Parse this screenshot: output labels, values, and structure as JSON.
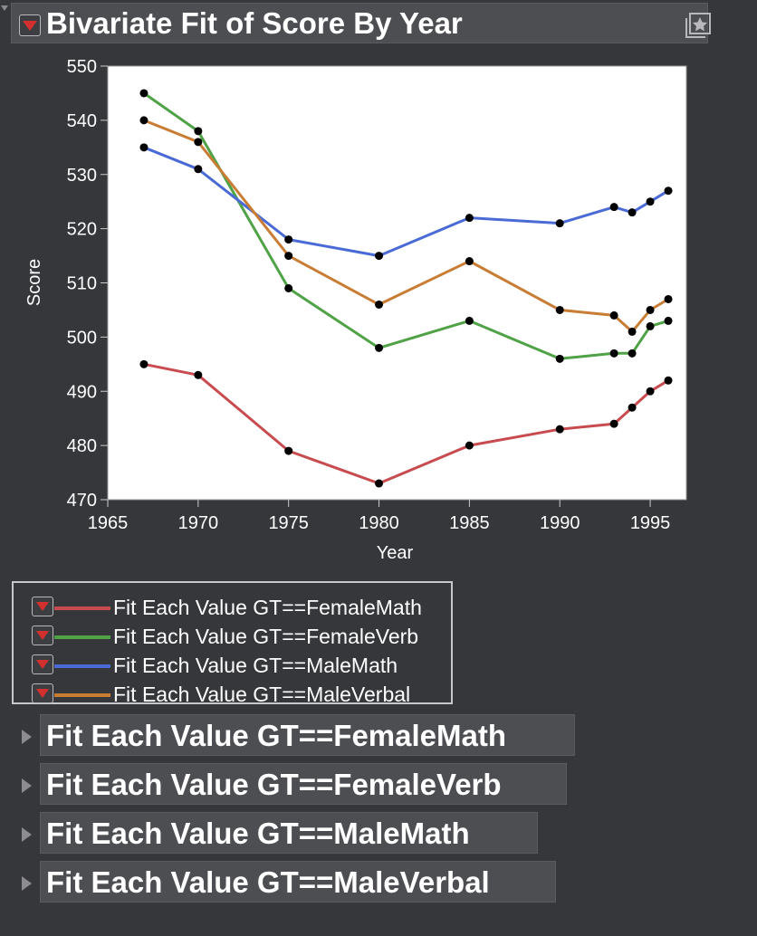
{
  "report": {
    "title": "Bivariate Fit of Score By Year"
  },
  "legend": {
    "items": [
      {
        "label": "Fit Each Value GT==FemaleMath",
        "color": "#c84b4f"
      },
      {
        "label": "Fit Each Value GT==FemaleVerb",
        "color": "#4fa346"
      },
      {
        "label": "Fit Each Value GT==MaleMath",
        "color": "#4a6bd6"
      },
      {
        "label": "Fit Each Value GT==MaleVerbal",
        "color": "#c97d34"
      }
    ]
  },
  "sections": [
    {
      "label": "Fit Each Value GT==FemaleMath"
    },
    {
      "label": "Fit Each Value GT==FemaleVerb"
    },
    {
      "label": "Fit Each Value GT==MaleMath"
    },
    {
      "label": "Fit Each Value GT==MaleVerbal"
    }
  ],
  "chart_data": {
    "type": "line",
    "title": "Bivariate Fit of Score By Year",
    "xlabel": "Year",
    "ylabel": "Score",
    "xlim": [
      1965,
      1997
    ],
    "ylim": [
      470,
      550
    ],
    "xticks": [
      1965,
      1970,
      1975,
      1980,
      1985,
      1990,
      1995
    ],
    "yticks": [
      470,
      480,
      490,
      500,
      510,
      520,
      530,
      540,
      550
    ],
    "x": [
      1967,
      1970,
      1975,
      1980,
      1985,
      1990,
      1993,
      1994,
      1995,
      1996
    ],
    "markers": true,
    "marker_color": "#000000",
    "series": [
      {
        "name": "Fit Each Value GT==FemaleMath",
        "color": "#c84b4f",
        "values": [
          495,
          493,
          479,
          473,
          480,
          483,
          484,
          487,
          490,
          492
        ]
      },
      {
        "name": "Fit Each Value GT==FemaleVerb",
        "color": "#4fa346",
        "values": [
          545,
          538,
          509,
          498,
          503,
          496,
          497,
          497,
          502,
          503
        ]
      },
      {
        "name": "Fit Each Value GT==MaleMath",
        "color": "#4a6bd6",
        "values": [
          535,
          531,
          518,
          515,
          522,
          521,
          524,
          523,
          525,
          527
        ]
      },
      {
        "name": "Fit Each Value GT==MaleVerbal",
        "color": "#c97d34",
        "values": [
          540,
          536,
          515,
          506,
          514,
          505,
          504,
          501,
          505,
          507
        ]
      }
    ],
    "grid": false,
    "legend_position": "bottom-left"
  },
  "icons": {
    "report_menu": "red-triangle-menu-icon",
    "pin": "pin-star-icon",
    "outline_toggle": "disclosure-triangle-icon"
  }
}
